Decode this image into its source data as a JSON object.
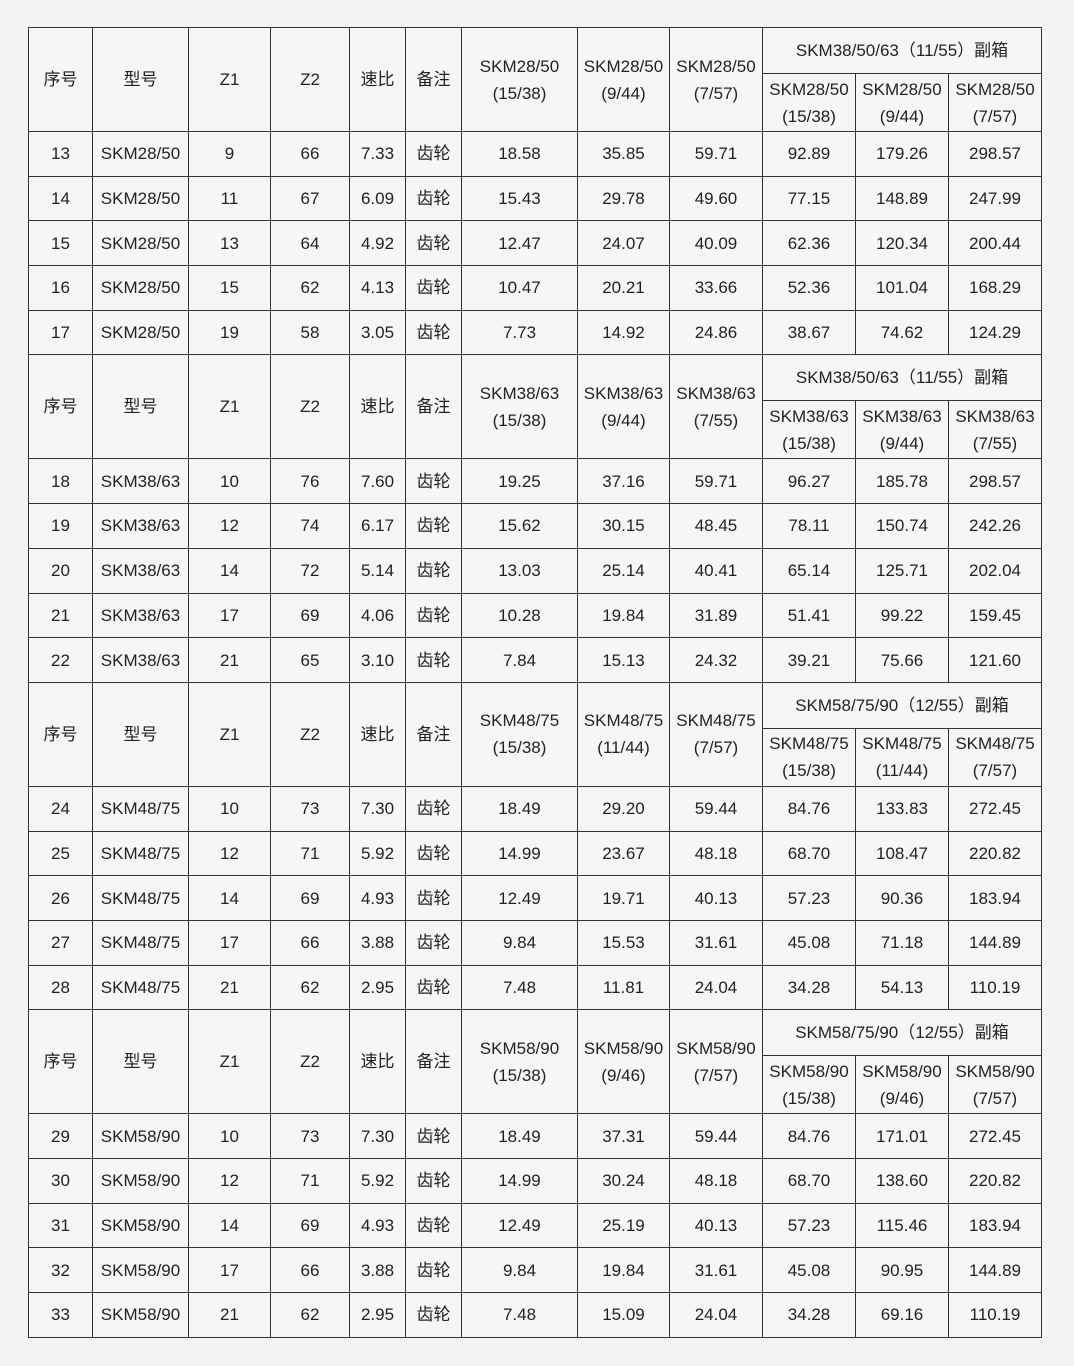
{
  "header_labels": {
    "seq": "序号",
    "model": "型号",
    "z1": "Z1",
    "z2": "Z2",
    "ratio": "速比",
    "note": "备注"
  },
  "sections": [
    {
      "cols": [
        [
          "SKM28/50",
          "(15/38)"
        ],
        [
          "SKM28/50",
          "(9/44)"
        ],
        [
          "SKM28/50",
          "(7/57)"
        ]
      ],
      "aux_title": "SKM38/50/63（11/55）副箱",
      "aux_cols": [
        [
          "SKM28/50",
          "(15/38)"
        ],
        [
          "SKM28/50",
          "(9/44)"
        ],
        [
          "SKM28/50",
          "(7/57)"
        ]
      ],
      "rows": [
        [
          "13",
          "SKM28/50",
          "9",
          "66",
          "7.33",
          "齿轮",
          "18.58",
          "35.85",
          "59.71",
          "92.89",
          "179.26",
          "298.57"
        ],
        [
          "14",
          "SKM28/50",
          "11",
          "67",
          "6.09",
          "齿轮",
          "15.43",
          "29.78",
          "49.60",
          "77.15",
          "148.89",
          "247.99"
        ],
        [
          "15",
          "SKM28/50",
          "13",
          "64",
          "4.92",
          "齿轮",
          "12.47",
          "24.07",
          "40.09",
          "62.36",
          "120.34",
          "200.44"
        ],
        [
          "16",
          "SKM28/50",
          "15",
          "62",
          "4.13",
          "齿轮",
          "10.47",
          "20.21",
          "33.66",
          "52.36",
          "101.04",
          "168.29"
        ],
        [
          "17",
          "SKM28/50",
          "19",
          "58",
          "3.05",
          "齿轮",
          "7.73",
          "14.92",
          "24.86",
          "38.67",
          "74.62",
          "124.29"
        ]
      ]
    },
    {
      "cols": [
        [
          "SKM38/63",
          "(15/38)"
        ],
        [
          "SKM38/63",
          "(9/44)"
        ],
        [
          "SKM38/63",
          "(7/55)"
        ]
      ],
      "aux_title": "SKM38/50/63（11/55）副箱",
      "aux_cols": [
        [
          "SKM38/63",
          "(15/38)"
        ],
        [
          "SKM38/63",
          "(9/44)"
        ],
        [
          "SKM38/63",
          "(7/55)"
        ]
      ],
      "rows": [
        [
          "18",
          "SKM38/63",
          "10",
          "76",
          "7.60",
          "齿轮",
          "19.25",
          "37.16",
          "59.71",
          "96.27",
          "185.78",
          "298.57"
        ],
        [
          "19",
          "SKM38/63",
          "12",
          "74",
          "6.17",
          "齿轮",
          "15.62",
          "30.15",
          "48.45",
          "78.11",
          "150.74",
          "242.26"
        ],
        [
          "20",
          "SKM38/63",
          "14",
          "72",
          "5.14",
          "齿轮",
          "13.03",
          "25.14",
          "40.41",
          "65.14",
          "125.71",
          "202.04"
        ],
        [
          "21",
          "SKM38/63",
          "17",
          "69",
          "4.06",
          "齿轮",
          "10.28",
          "19.84",
          "31.89",
          "51.41",
          "99.22",
          "159.45"
        ],
        [
          "22",
          "SKM38/63",
          "21",
          "65",
          "3.10",
          "齿轮",
          "7.84",
          "15.13",
          "24.32",
          "39.21",
          "75.66",
          "121.60"
        ]
      ]
    },
    {
      "cols": [
        [
          "SKM48/75",
          "(15/38)"
        ],
        [
          "SKM48/75",
          "(11/44)"
        ],
        [
          "SKM48/75",
          "(7/57)"
        ]
      ],
      "aux_title": "SKM58/75/90（12/55）副箱",
      "aux_cols": [
        [
          "SKM48/75",
          "(15/38)"
        ],
        [
          "SKM48/75",
          "(11/44)"
        ],
        [
          "SKM48/75",
          "(7/57)"
        ]
      ],
      "rows": [
        [
          "24",
          "SKM48/75",
          "10",
          "73",
          "7.30",
          "齿轮",
          "18.49",
          "29.20",
          "59.44",
          "84.76",
          "133.83",
          "272.45"
        ],
        [
          "25",
          "SKM48/75",
          "12",
          "71",
          "5.92",
          "齿轮",
          "14.99",
          "23.67",
          "48.18",
          "68.70",
          "108.47",
          "220.82"
        ],
        [
          "26",
          "SKM48/75",
          "14",
          "69",
          "4.93",
          "齿轮",
          "12.49",
          "19.71",
          "40.13",
          "57.23",
          "90.36",
          "183.94"
        ],
        [
          "27",
          "SKM48/75",
          "17",
          "66",
          "3.88",
          "齿轮",
          "9.84",
          "15.53",
          "31.61",
          "45.08",
          "71.18",
          "144.89"
        ],
        [
          "28",
          "SKM48/75",
          "21",
          "62",
          "2.95",
          "齿轮",
          "7.48",
          "11.81",
          "24.04",
          "34.28",
          "54.13",
          "110.19"
        ]
      ]
    },
    {
      "cols": [
        [
          "SKM58/90",
          "(15/38)"
        ],
        [
          "SKM58/90",
          "(9/46)"
        ],
        [
          "SKM58/90",
          "(7/57)"
        ]
      ],
      "aux_title": "SKM58/75/90（12/55）副箱",
      "aux_cols": [
        [
          "SKM58/90",
          "(15/38)"
        ],
        [
          "SKM58/90",
          "(9/46)"
        ],
        [
          "SKM58/90",
          "(7/57)"
        ]
      ],
      "rows": [
        [
          "29",
          "SKM58/90",
          "10",
          "73",
          "7.30",
          "齿轮",
          "18.49",
          "37.31",
          "59.44",
          "84.76",
          "171.01",
          "272.45"
        ],
        [
          "30",
          "SKM58/90",
          "12",
          "71",
          "5.92",
          "齿轮",
          "14.99",
          "30.24",
          "48.18",
          "68.70",
          "138.60",
          "220.82"
        ],
        [
          "31",
          "SKM58/90",
          "14",
          "69",
          "4.93",
          "齿轮",
          "12.49",
          "25.19",
          "40.13",
          "57.23",
          "115.46",
          "183.94"
        ],
        [
          "32",
          "SKM58/90",
          "17",
          "66",
          "3.88",
          "齿轮",
          "9.84",
          "19.84",
          "31.61",
          "45.08",
          "90.95",
          "144.89"
        ],
        [
          "33",
          "SKM58/90",
          "21",
          "62",
          "2.95",
          "齿轮",
          "7.48",
          "15.09",
          "24.04",
          "34.28",
          "69.16",
          "110.19"
        ]
      ]
    }
  ]
}
